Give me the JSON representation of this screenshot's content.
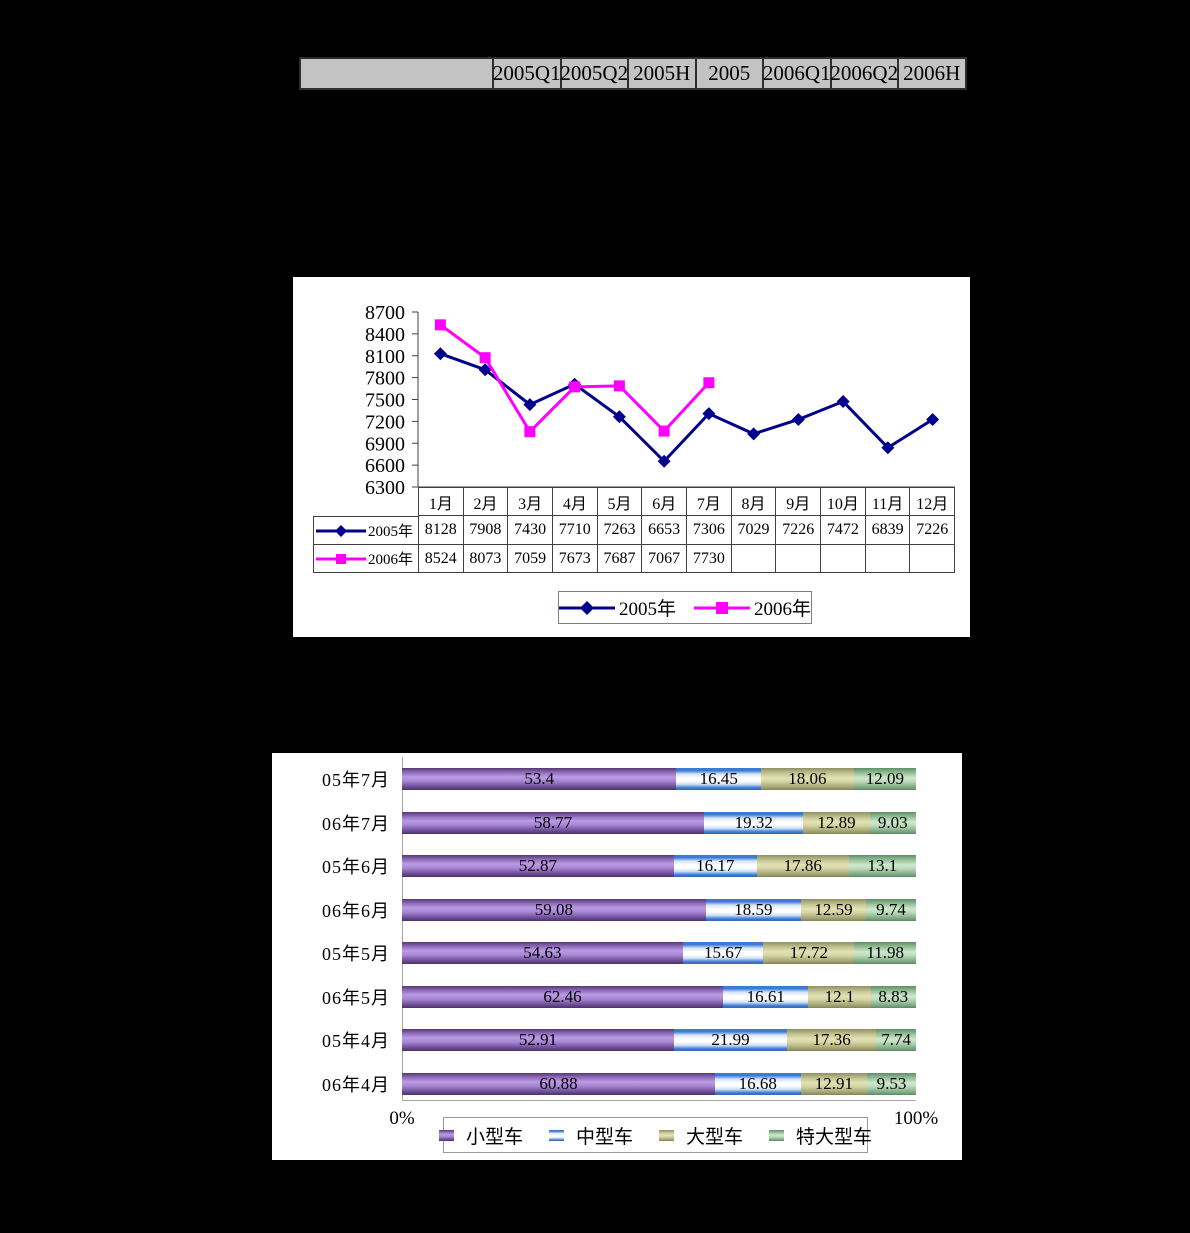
{
  "page_background": "#000000",
  "header_table": {
    "columns": [
      "",
      "2005Q1",
      "2005Q2",
      "2005H",
      "2005",
      "2006Q1",
      "2006Q2",
      "2006H"
    ]
  },
  "chart_data": [
    {
      "type": "line",
      "categories": [
        "1月",
        "2月",
        "3月",
        "4月",
        "5月",
        "6月",
        "7月",
        "8月",
        "9月",
        "10月",
        "11月",
        "12月"
      ],
      "series": [
        {
          "name": "2005年",
          "color": "#00008B",
          "marker": "diamond",
          "values": [
            8128,
            7908,
            7430,
            7710,
            7263,
            6653,
            7306,
            7029,
            7226,
            7472,
            6839,
            7226
          ]
        },
        {
          "name": "2006年",
          "color": "#FF00FF",
          "marker": "square",
          "values": [
            8524,
            8073,
            7059,
            7673,
            7687,
            7067,
            7730,
            null,
            null,
            null,
            null,
            null
          ]
        }
      ],
      "ylim": [
        6300,
        8700
      ],
      "ytick_step": 300,
      "grid": false,
      "legend_position": "bottom",
      "data_table": true
    },
    {
      "type": "bar",
      "orientation": "horizontal-stacked",
      "categories": [
        "05年7月",
        "06年7月",
        "05年6月",
        "06年6月",
        "05年5月",
        "06年5月",
        "05年4月",
        "06年4月"
      ],
      "series": [
        {
          "name": "小型车",
          "color": "#9a77c8",
          "values": [
            53.4,
            58.77,
            52.87,
            59.08,
            54.63,
            62.46,
            52.91,
            60.88
          ]
        },
        {
          "name": "中型车",
          "color": "#4a86d8",
          "values": [
            16.45,
            19.32,
            16.17,
            18.59,
            15.67,
            16.61,
            21.99,
            16.68
          ]
        },
        {
          "name": "大型车",
          "color": "#cfcf9e",
          "values": [
            18.06,
            12.89,
            17.86,
            12.59,
            17.72,
            12.1,
            17.36,
            12.91
          ]
        },
        {
          "name": "特大型车",
          "color": "#9fc6a2",
          "values": [
            12.09,
            9.03,
            13.1,
            9.74,
            11.98,
            8.83,
            7.74,
            9.53
          ]
        }
      ],
      "xlim": [
        0,
        100
      ],
      "xmin_label": "0%",
      "xmax_label": "100%",
      "legend_position": "bottom"
    }
  ]
}
